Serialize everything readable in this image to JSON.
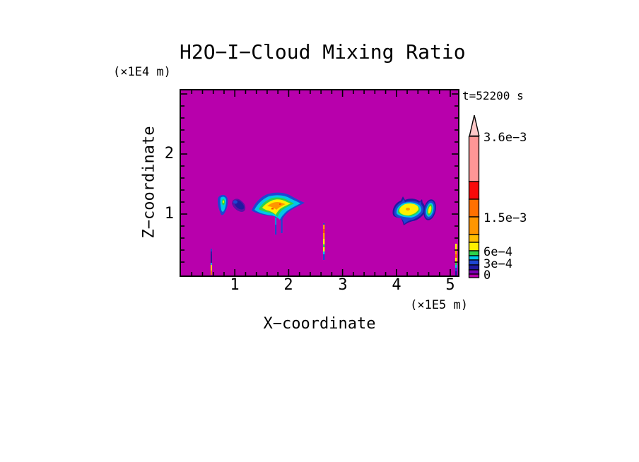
{
  "page": {
    "background_color": "#FFFFFF"
  },
  "header": {
    "title": "H2O−I−Cloud Mixing Ratio",
    "time_label": "t=52200 s"
  },
  "axes": {
    "x": {
      "label": "X−coordinate",
      "unit": "(×1E5 m)",
      "tick_labels": [
        "1",
        "2",
        "3",
        "4",
        "5"
      ]
    },
    "z": {
      "label": "Z−coordinate",
      "unit": "(×1E4 m)",
      "tick_labels": [
        "2",
        "1"
      ]
    }
  },
  "colorbar": {
    "labels": [
      "3.6e−3",
      "1.5e−3",
      "6e−4",
      "3e−4",
      "0"
    ],
    "arrow_color": "#FFC8C8",
    "segments_top_to_bottom": [
      {
        "color": "#FF9696",
        "h": 64
      },
      {
        "color": "#FA0A0A",
        "h": 25
      },
      {
        "color": "#FF7000",
        "h": 25
      },
      {
        "color": "#FF9600",
        "h": 25
      },
      {
        "color": "#FFBE00",
        "h": 11
      },
      {
        "color": "#FFF000",
        "h": 12
      },
      {
        "color": "#2ED24A",
        "h": 7
      },
      {
        "color": "#00C8E6",
        "h": 6
      },
      {
        "color": "#1E46D2",
        "h": 7
      },
      {
        "color": "#201AA0",
        "h": 7
      },
      {
        "color": "#7C00B4",
        "h": 6
      },
      {
        "color": "#B800AC",
        "h": 5
      }
    ]
  },
  "chart_data": {
    "type": "heatmap",
    "title": "H2O−I−Cloud Mixing Ratio",
    "time": "t=52200 s",
    "xlabel": "X−coordinate",
    "x_unit": "×1E5 m",
    "ylabel": "Z−coordinate",
    "y_unit": "×1E4 m",
    "xlim": [
      0,
      5.14
    ],
    "ylim": [
      0,
      3.06
    ],
    "x_ticks": [
      1,
      2,
      3,
      4,
      5
    ],
    "y_ticks": [
      2,
      1
    ],
    "minor_tick_step": 0.2,
    "grid": false,
    "legend_position": "right-colorbar-with-arrow",
    "colorbar_labeled_levels": [
      "0",
      "3e−4",
      "6e−4",
      "1.5e−3",
      "3.6e−3"
    ],
    "palette_low_to_high": [
      "#B800AC",
      "#7C00B4",
      "#201AA0",
      "#1E46D2",
      "#00C8E6",
      "#2ED24A",
      "#FFF000",
      "#FFBE00",
      "#FF9600",
      "#FF7000",
      "#FA0A0A",
      "#FF9696"
    ],
    "background_field_value": 0,
    "background_field_color": "#B800AC",
    "features": [
      {
        "kind": "cloud",
        "x_center": 0.79,
        "z_center": 1.16,
        "x_span": [
          0.69,
          0.87
        ],
        "z_span": [
          0.99,
          1.33
        ],
        "max_level": "6e−4"
      },
      {
        "kind": "cloud",
        "x_center": 1.07,
        "z_center": 1.14,
        "x_span": [
          0.93,
          1.19
        ],
        "z_span": [
          1.03,
          1.26
        ],
        "max_level": "3e−4"
      },
      {
        "kind": "cloud",
        "x_center": 1.79,
        "z_center": 1.1,
        "x_span": [
          1.32,
          2.26
        ],
        "z_span": [
          0.66,
          1.35
        ],
        "max_level": "1.5e−3"
      },
      {
        "kind": "cloud",
        "x_center": 4.22,
        "z_center": 1.06,
        "x_span": [
          3.94,
          4.54
        ],
        "z_span": [
          0.84,
          1.26
        ],
        "max_level": "1.5e−3"
      },
      {
        "kind": "cloud",
        "x_center": 4.61,
        "z_center": 1.07,
        "x_span": [
          4.51,
          4.73
        ],
        "z_span": [
          0.88,
          1.25
        ],
        "max_level": "6e−4"
      },
      {
        "kind": "streak",
        "x_center": 2.65,
        "z_span": [
          0.24,
          0.82
        ],
        "max_level": "1.5e−3"
      },
      {
        "kind": "streak",
        "x_center": 0.56,
        "z_span": [
          0.0,
          0.42
        ],
        "max_level": "6e−4"
      },
      {
        "kind": "streak",
        "x_center": 5.11,
        "z_span": [
          0.0,
          0.53
        ],
        "max_level": "1.5e−3"
      }
    ]
  }
}
